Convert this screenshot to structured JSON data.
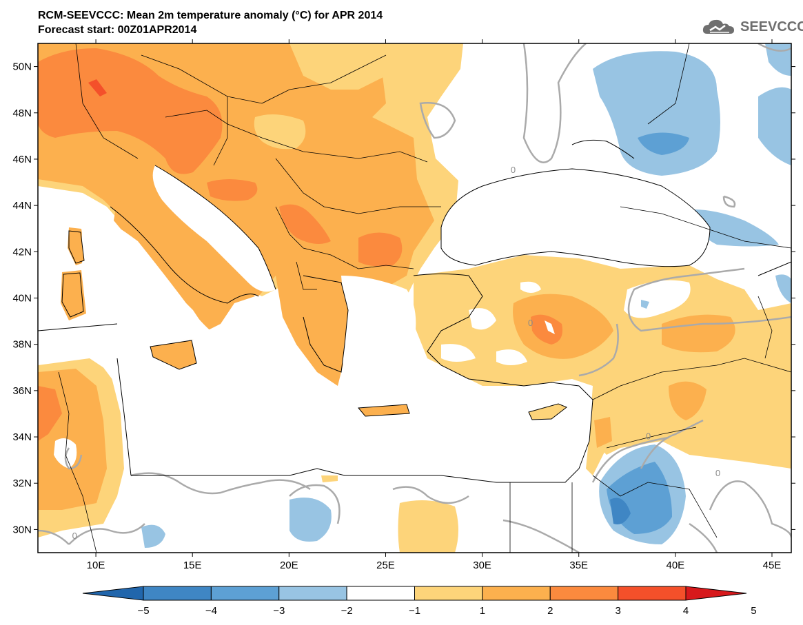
{
  "header": {
    "title_line1": "RCM-SEEVCCC: Mean 2m temperature anomaly (°C) for APR 2014",
    "title_line2": "Forecast start: 00Z01APR2014"
  },
  "logo": {
    "text": "SEEVCCC",
    "icon": "cloud-logo-icon",
    "color": "#6f6f6f"
  },
  "map": {
    "lon_range": [
      7,
      46
    ],
    "lat_range": [
      29,
      51
    ],
    "lat_ticks": [
      {
        "value": 30,
        "label": "30N"
      },
      {
        "value": 32,
        "label": "32N"
      },
      {
        "value": 34,
        "label": "34N"
      },
      {
        "value": 36,
        "label": "36N"
      },
      {
        "value": 38,
        "label": "38N"
      },
      {
        "value": 40,
        "label": "40N"
      },
      {
        "value": 42,
        "label": "42N"
      },
      {
        "value": 44,
        "label": "44N"
      },
      {
        "value": 46,
        "label": "46N"
      },
      {
        "value": 48,
        "label": "48N"
      },
      {
        "value": 50,
        "label": "50N"
      }
    ],
    "lon_ticks": [
      {
        "value": 10,
        "label": "10E"
      },
      {
        "value": 15,
        "label": "15E"
      },
      {
        "value": 20,
        "label": "20E"
      },
      {
        "value": 25,
        "label": "25E"
      },
      {
        "value": 30,
        "label": "30E"
      },
      {
        "value": 35,
        "label": "35E"
      },
      {
        "value": 40,
        "label": "40E"
      },
      {
        "value": 45,
        "label": "45E"
      }
    ],
    "zero_contour_labels": [
      {
        "lon": 31.6,
        "lat": 45.4,
        "text": "0"
      },
      {
        "lon": 38.6,
        "lat": 33.9,
        "text": "0"
      },
      {
        "lon": 8.9,
        "lat": 29.6,
        "text": "0"
      },
      {
        "lon": 32.5,
        "lat": 38.8,
        "text": "0"
      },
      {
        "lon": 42.2,
        "lat": 32.3,
        "text": "0"
      }
    ]
  },
  "colorbar": {
    "colors": [
      "#2166ac",
      "#3f86c4",
      "#5da0d4",
      "#98c4e3",
      "#ffffff",
      "#fdd47a",
      "#fcb04e",
      "#fb8a3e",
      "#f4502a",
      "#d7191c"
    ],
    "labels": [
      "−5",
      "−4",
      "−3",
      "−2",
      "−1",
      "1",
      "2",
      "3",
      "4",
      "5"
    ]
  }
}
